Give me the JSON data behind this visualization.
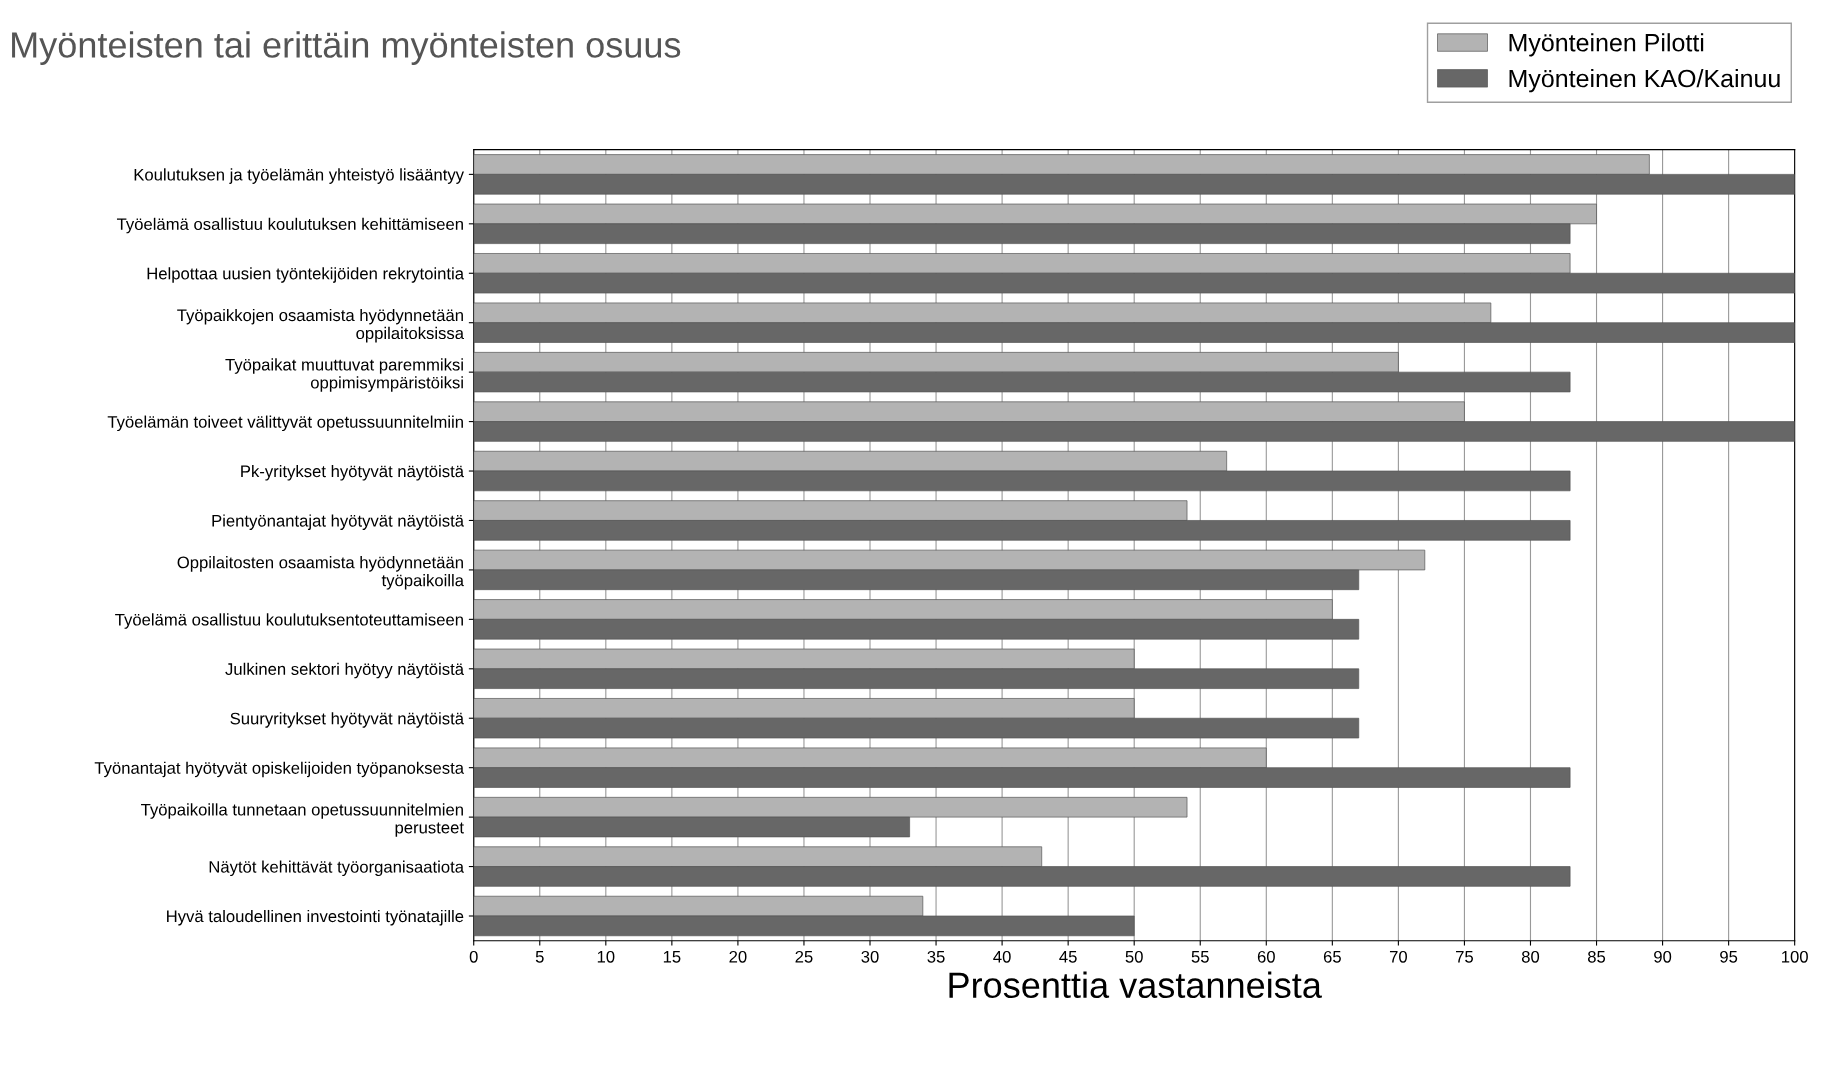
{
  "chart_data": {
    "type": "bar",
    "orientation": "horizontal",
    "title": "Myönteisten tai erittäin myönteisten osuus",
    "xlabel": "Prosenttia vastanneista",
    "categories": [
      "Koulutuksen ja työelämän yhteistyö lisääntyy",
      "Työelämä osallistuu koulutuksen kehittämiseen",
      "Helpottaa uusien työntekijöiden rekrytointia",
      "Työpaikkojen osaamista hyödynnetään\noppilaitoksissa",
      "Työpaikat muuttuvat paremmiksi\noppimisympäristöiksi",
      "Työelämän toiveet välittyvät opetussuunnitelmiin",
      "Pk-yritykset hyötyvät näytöistä",
      "Pientyönantajat hyötyvät näytöistä",
      "Oppilaitosten osaamista hyödynnetään\ntyöpaikoilla",
      "Työelämä osallistuu koulutuksentoteuttamiseen",
      "Julkinen sektori hyötyy näytöistä",
      "Suuryritykset hyötyvät näytöistä",
      "Työnantajat hyötyvät opiskelijoiden työpanoksesta",
      "Työpaikoilla tunnetaan opetussuunnitelmien\nperusteet",
      "Näytöt kehittävät työorganisaatiota",
      "Hyvä taloudellinen investointi työnatajille"
    ],
    "series": [
      {
        "name": "Myönteinen Pilotti",
        "color": "#b3b3b3",
        "values": [
          89,
          85,
          83,
          77,
          70,
          75,
          57,
          54,
          72,
          65,
          50,
          50,
          60,
          54,
          43,
          34
        ]
      },
      {
        "name": "Myönteinen KAO/Kainuu",
        "color": "#676767",
        "values": [
          100,
          83,
          100,
          100,
          83,
          100,
          83,
          83,
          67,
          67,
          67,
          67,
          83,
          33,
          83,
          50
        ]
      }
    ],
    "xlim": [
      0,
      100
    ],
    "xticks": [
      0,
      5,
      10,
      15,
      20,
      25,
      30,
      35,
      40,
      45,
      50,
      55,
      60,
      65,
      70,
      75,
      80,
      85,
      90,
      95,
      100
    ],
    "grid": "x",
    "legend": "top right"
  }
}
